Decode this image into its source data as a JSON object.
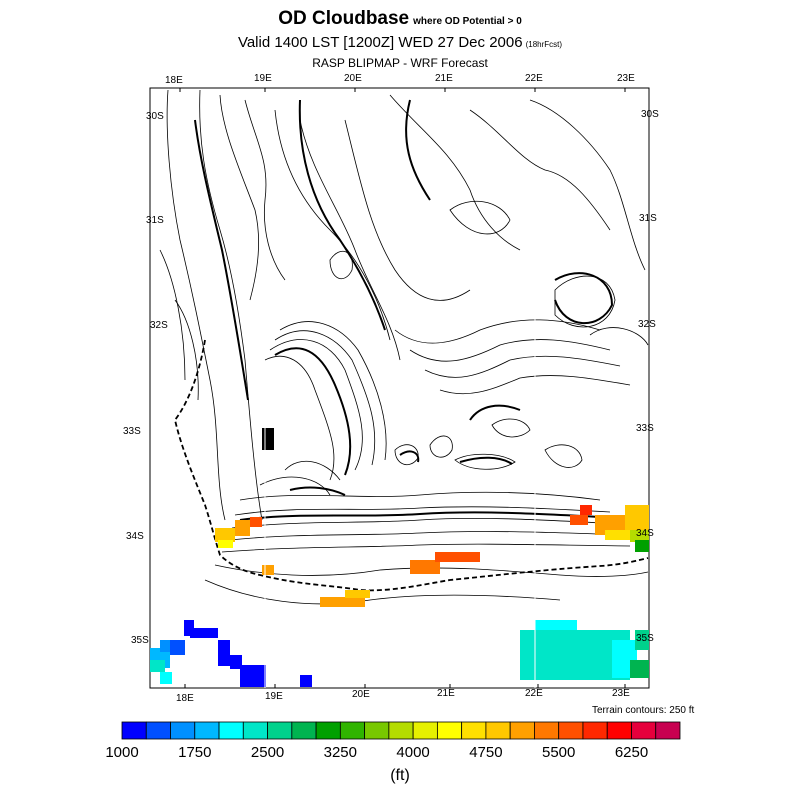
{
  "title": {
    "main": "OD Cloudbase",
    "main_suffix": "where OD Potential > 0",
    "valid": "Valid 1400 LST [1200Z] WED 27 Dec 2006",
    "valid_suffix": "(18hrFcst)",
    "model": "RASP BLIPMAP - WRF Forecast"
  },
  "axes": {
    "top_lon": [
      "18E",
      "19E",
      "20E",
      "21E",
      "22E",
      "23E"
    ],
    "bottom_lon": [
      "18E",
      "19E",
      "20E",
      "21E",
      "22E",
      "23E"
    ],
    "left_lat": [
      "30S",
      "31S",
      "32S",
      "33S",
      "34S",
      "35S"
    ],
    "right_lat": [
      "30S",
      "31S",
      "32S",
      "33S",
      "34S",
      "35S"
    ]
  },
  "terrain_note": "Terrain contours: 250 ft",
  "colorbar": {
    "min": 1000,
    "step": 250,
    "tick_labels": [
      "1000",
      "1750",
      "2500",
      "3250",
      "4000",
      "4750",
      "5500",
      "6250"
    ],
    "units": "(ft)",
    "colors": [
      "#0000ff",
      "#0050ff",
      "#0090ff",
      "#00b8ff",
      "#00ffff",
      "#00e6c8",
      "#00d28c",
      "#00b450",
      "#00a000",
      "#30b400",
      "#78c800",
      "#b4dc00",
      "#e6f000",
      "#ffff00",
      "#ffe000",
      "#ffc800",
      "#ffa000",
      "#ff7800",
      "#ff5000",
      "#ff2800",
      "#ff0000",
      "#e6003c",
      "#c80050"
    ]
  }
}
